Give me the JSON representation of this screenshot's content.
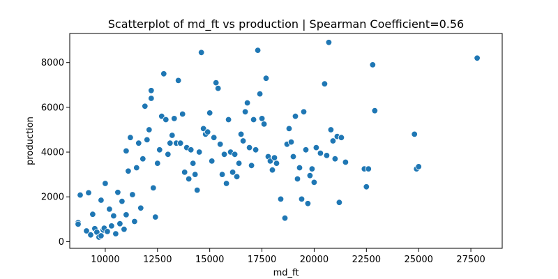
{
  "chart_data": {
    "type": "scatter",
    "title": "Scatterplot of md_ft vs production | Spearman Coefficient=0.56",
    "xlabel": "md_ft",
    "ylabel": "production",
    "xlim": [
      8300,
      29000
    ],
    "ylim": [
      -300,
      9300
    ],
    "xticks": [
      10000,
      12500,
      15000,
      17500,
      20000,
      22500,
      25000,
      27500
    ],
    "yticks": [
      0,
      2000,
      4000,
      6000,
      8000
    ],
    "grid": false,
    "legend": "none",
    "point_color": "#1f77b4",
    "edge_color": "#ffffff",
    "points": [
      [
        8700,
        850
      ],
      [
        8700,
        780
      ],
      [
        8800,
        2080
      ],
      [
        9100,
        480
      ],
      [
        9200,
        2180
      ],
      [
        9300,
        300
      ],
      [
        9400,
        1220
      ],
      [
        9500,
        580
      ],
      [
        9600,
        420
      ],
      [
        9700,
        200
      ],
      [
        9800,
        1850
      ],
      [
        9800,
        260
      ],
      [
        9900,
        520
      ],
      [
        9950,
        600
      ],
      [
        10000,
        2600
      ],
      [
        10100,
        450
      ],
      [
        10200,
        1450
      ],
      [
        10300,
        700
      ],
      [
        10400,
        1150
      ],
      [
        10500,
        350
      ],
      [
        10600,
        2200
      ],
      [
        10700,
        800
      ],
      [
        10800,
        1800
      ],
      [
        10900,
        550
      ],
      [
        11000,
        4050
      ],
      [
        11000,
        1200
      ],
      [
        11100,
        3150
      ],
      [
        11200,
        4650
      ],
      [
        11300,
        2100
      ],
      [
        11400,
        900
      ],
      [
        11500,
        3300
      ],
      [
        11600,
        4400
      ],
      [
        11700,
        1500
      ],
      [
        11800,
        3700
      ],
      [
        11900,
        6050
      ],
      [
        12000,
        4550
      ],
      [
        12100,
        5000
      ],
      [
        12200,
        6750
      ],
      [
        12200,
        6400
      ],
      [
        12300,
        2400
      ],
      [
        12400,
        1100
      ],
      [
        12500,
        3500
      ],
      [
        12600,
        4100
      ],
      [
        12700,
        5600
      ],
      [
        12800,
        7500
      ],
      [
        12900,
        5450
      ],
      [
        13000,
        3900
      ],
      [
        13100,
        4400
      ],
      [
        13200,
        4750
      ],
      [
        13300,
        5500
      ],
      [
        13400,
        4400
      ],
      [
        13500,
        7200
      ],
      [
        13600,
        4400
      ],
      [
        13700,
        5700
      ],
      [
        13800,
        3100
      ],
      [
        13900,
        4200
      ],
      [
        14000,
        2800
      ],
      [
        14100,
        4100
      ],
      [
        14200,
        3500
      ],
      [
        14300,
        3000
      ],
      [
        14400,
        2300
      ],
      [
        14500,
        4000
      ],
      [
        14600,
        8450
      ],
      [
        14700,
        5050
      ],
      [
        14800,
        4800
      ],
      [
        14900,
        4900
      ],
      [
        15000,
        5750
      ],
      [
        15100,
        3600
      ],
      [
        15200,
        4650
      ],
      [
        15300,
        7100
      ],
      [
        15400,
        6850
      ],
      [
        15500,
        4350
      ],
      [
        15600,
        3000
      ],
      [
        15700,
        3900
      ],
      [
        15800,
        2600
      ],
      [
        15900,
        5450
      ],
      [
        16000,
        4000
      ],
      [
        16100,
        3100
      ],
      [
        16200,
        3900
      ],
      [
        16300,
        2900
      ],
      [
        16400,
        3500
      ],
      [
        16500,
        4800
      ],
      [
        16600,
        4500
      ],
      [
        16700,
        5800
      ],
      [
        16800,
        6200
      ],
      [
        16900,
        4200
      ],
      [
        17000,
        3400
      ],
      [
        17100,
        5450
      ],
      [
        17200,
        4100
      ],
      [
        17300,
        8550
      ],
      [
        17400,
        6600
      ],
      [
        17500,
        5500
      ],
      [
        17600,
        5250
      ],
      [
        17700,
        7300
      ],
      [
        17800,
        3800
      ],
      [
        17900,
        3600
      ],
      [
        18000,
        3200
      ],
      [
        18100,
        3750
      ],
      [
        18200,
        3500
      ],
      [
        18400,
        1900
      ],
      [
        18600,
        1050
      ],
      [
        18700,
        4350
      ],
      [
        18800,
        5050
      ],
      [
        18900,
        4450
      ],
      [
        19000,
        3800
      ],
      [
        19100,
        5600
      ],
      [
        19200,
        2800
      ],
      [
        19300,
        3300
      ],
      [
        19400,
        1900
      ],
      [
        19500,
        5800
      ],
      [
        19600,
        4100
      ],
      [
        19700,
        1700
      ],
      [
        19800,
        2950
      ],
      [
        19900,
        3250
      ],
      [
        20000,
        2650
      ],
      [
        20100,
        4200
      ],
      [
        20300,
        3950
      ],
      [
        20500,
        7050
      ],
      [
        20600,
        3850
      ],
      [
        20700,
        8900
      ],
      [
        20800,
        5000
      ],
      [
        20900,
        4500
      ],
      [
        21000,
        3700
      ],
      [
        21100,
        4700
      ],
      [
        21200,
        1750
      ],
      [
        21300,
        4650
      ],
      [
        21500,
        3550
      ],
      [
        22400,
        3250
      ],
      [
        22500,
        2450
      ],
      [
        22600,
        3250
      ],
      [
        22800,
        7900
      ],
      [
        22900,
        5850
      ],
      [
        24800,
        4800
      ],
      [
        24900,
        3250
      ],
      [
        25000,
        3350
      ],
      [
        27800,
        8200
      ]
    ]
  }
}
